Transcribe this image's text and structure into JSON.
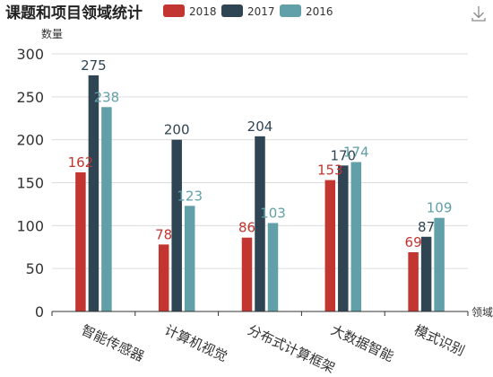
{
  "chart_data": {
    "type": "bar",
    "title": "课题和项目领域统计",
    "ylabel": "数量",
    "xlabel": "领域",
    "ylim": [
      0,
      300
    ],
    "yticks": [
      0,
      50,
      100,
      150,
      200,
      250,
      300
    ],
    "legend_position": "top",
    "categories": [
      "智能传感器",
      "计算机视觉",
      "分布式计算框架",
      "大数据智能",
      "模式识别"
    ],
    "series": [
      {
        "name": "2018",
        "color": "#c23531",
        "values": [
          162,
          78,
          86,
          153,
          69
        ]
      },
      {
        "name": "2017",
        "color": "#2f4554",
        "values": [
          275,
          200,
          204,
          170,
          87
        ]
      },
      {
        "name": "2016",
        "color": "#61a0a8",
        "values": [
          238,
          123,
          103,
          174,
          109
        ]
      }
    ],
    "bar_labels": true
  },
  "toolbox": {
    "icon": "download-icon"
  }
}
